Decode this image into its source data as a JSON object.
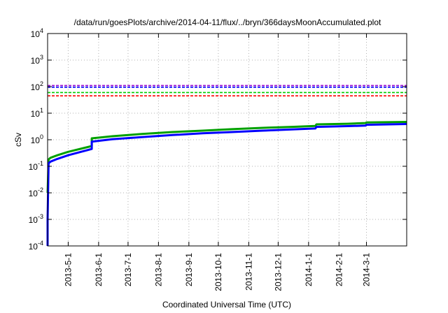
{
  "chart_data": {
    "type": "line",
    "title": "/data/run/goesPlots/archive/2014-04-11/flux/../bryn/366daysMoonAccumulated.plot",
    "xlabel": "Coordinated Universal Time (UTC)",
    "ylabel": "cSv",
    "yscale": "log",
    "ylim": [
      0.0001,
      10000
    ],
    "xlim": [
      "2013-04-10",
      "2014-04-11"
    ],
    "grid": true,
    "x_ticks": [
      "2013-5-1",
      "2013-6-1",
      "2013-7-1",
      "2013-8-1",
      "2013-9-1",
      "2013-10-1",
      "2013-11-1",
      "2013-12-1",
      "2014-1-1",
      "2014-2-1",
      "2014-3-1"
    ],
    "y_ticks": [
      {
        "base": "10",
        "exp": "-4",
        "value": 0.0001
      },
      {
        "base": "10",
        "exp": "-3",
        "value": 0.001
      },
      {
        "base": "10",
        "exp": "-2",
        "value": 0.01
      },
      {
        "base": "10",
        "exp": "-1",
        "value": 0.1
      },
      {
        "base": "10",
        "exp": "0",
        "value": 1
      },
      {
        "base": "10",
        "exp": "1",
        "value": 10
      },
      {
        "base": "10",
        "exp": "2",
        "value": 100
      },
      {
        "base": "10",
        "exp": "3",
        "value": 1000
      },
      {
        "base": "10",
        "exp": "4",
        "value": 10000
      }
    ],
    "series": [
      {
        "color": "#00a000",
        "style": "solid",
        "x": [
          "2013-04-10",
          "2013-04-11",
          "2013-04-13",
          "2013-04-20",
          "2013-05-01",
          "2013-05-15",
          "2013-05-25",
          "2013-05-25",
          "2013-06-15",
          "2013-07-15",
          "2013-08-15",
          "2013-09-15",
          "2013-10-15",
          "2013-11-15",
          "2013-12-15",
          "2014-01-08",
          "2014-01-09",
          "2014-02-10",
          "2014-02-28",
          "2014-03-01",
          "2014-04-11"
        ],
        "y": [
          0.01,
          0.18,
          0.21,
          0.26,
          0.35,
          0.47,
          0.58,
          1.13,
          1.35,
          1.65,
          1.95,
          2.2,
          2.5,
          2.8,
          3.05,
          3.3,
          3.8,
          4.0,
          4.25,
          4.5,
          4.7
        ]
      },
      {
        "color": "#0000ff",
        "style": "solid",
        "x": [
          "2013-04-10",
          "2013-04-10",
          "2013-04-11",
          "2013-04-13",
          "2013-04-20",
          "2013-05-01",
          "2013-05-15",
          "2013-05-25",
          "2013-05-25",
          "2013-06-15",
          "2013-07-15",
          "2013-08-15",
          "2013-09-15",
          "2013-10-15",
          "2013-11-15",
          "2013-12-15",
          "2014-01-08",
          "2014-01-09",
          "2014-02-10",
          "2014-02-28",
          "2014-03-01",
          "2014-04-11"
        ],
        "y": [
          0.0001,
          0.001,
          0.13,
          0.15,
          0.19,
          0.26,
          0.36,
          0.45,
          0.85,
          1.05,
          1.25,
          1.5,
          1.75,
          1.95,
          2.2,
          2.45,
          2.65,
          3.05,
          3.25,
          3.4,
          3.65,
          3.9
        ]
      },
      {
        "color": "#9400d3",
        "style": "dashed",
        "x": [
          "2013-04-10",
          "2014-04-11"
        ],
        "y": [
          110,
          110
        ]
      },
      {
        "color": "#0000ff",
        "style": "dashed",
        "x": [
          "2013-04-10",
          "2014-04-11"
        ],
        "y": [
          95,
          95
        ]
      },
      {
        "color": "#00cc00",
        "style": "dashed",
        "x": [
          "2013-04-10",
          "2014-04-11"
        ],
        "y": [
          60,
          60
        ]
      },
      {
        "color": "#ff0000",
        "style": "dashed",
        "x": [
          "2013-04-10",
          "2014-04-11"
        ],
        "y": [
          45,
          45
        ]
      }
    ]
  }
}
